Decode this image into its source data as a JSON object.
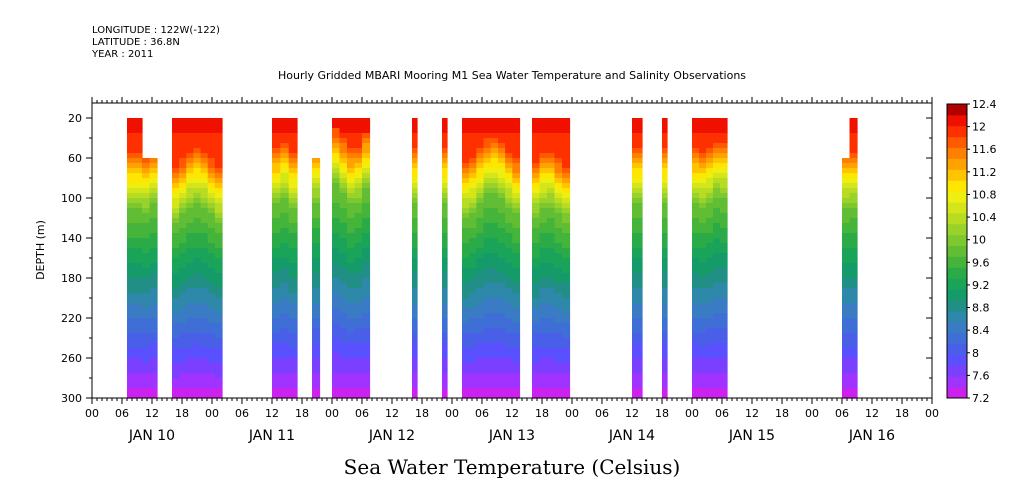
{
  "header": {
    "longitude": "LONGITUDE : 122W(-122)",
    "latitude": "LATITUDE : 36.8N",
    "year": "YEAR : 2011"
  },
  "chart_data": {
    "type": "heatmap",
    "title": "Hourly Gridded MBARI Mooring M1 Sea Water Temperature and Salinity Observations",
    "subtitle": "Sea Water Temperature (Celsius)",
    "ylabel": "DEPTH (m)",
    "xlabel": "",
    "x_unit": "hours since JAN 10 00",
    "xlim": [
      0,
      168
    ],
    "ylim": [
      300,
      0
    ],
    "y_ticks": [
      20,
      60,
      100,
      140,
      180,
      220,
      260,
      300
    ],
    "x_hour_ticks": [
      "00",
      "06",
      "12",
      "18",
      "00",
      "06",
      "12",
      "18",
      "00",
      "06",
      "12",
      "18",
      "00",
      "06",
      "12",
      "18",
      "00",
      "06",
      "12",
      "18",
      "00",
      "06",
      "12",
      "18",
      "00",
      "06",
      "12",
      "18",
      "00"
    ],
    "day_labels": [
      "JAN 10",
      "JAN 11",
      "JAN 12",
      "JAN 13",
      "JAN 14",
      "JAN 15",
      "JAN 16"
    ],
    "colorbar": {
      "levels": [
        7.2,
        7.4,
        7.6,
        7.8,
        8.0,
        8.2,
        8.4,
        8.6,
        8.8,
        9.0,
        9.2,
        9.4,
        9.6,
        9.8,
        10.0,
        10.2,
        10.4,
        10.6,
        10.8,
        11.0,
        11.2,
        11.4,
        11.6,
        11.8,
        12.0,
        12.2,
        12.4
      ],
      "tick_labels": [
        "7.2",
        "7.6",
        "8",
        "8.4",
        "8.8",
        "9.2",
        "9.6",
        "10",
        "10.4",
        "10.8",
        "11.2",
        "11.6",
        "12",
        "12.4"
      ],
      "colors": [
        "#cc22ee",
        "#a033ff",
        "#7a3fff",
        "#5a50ff",
        "#4a5fe8",
        "#3f6ed6",
        "#3a7cc4",
        "#2e88aa",
        "#218f86",
        "#159a6a",
        "#1aa45a",
        "#2bab48",
        "#44b43a",
        "#60bd34",
        "#7cc82e",
        "#98d22a",
        "#b8dc22",
        "#d4e61a",
        "#eeee10",
        "#ffe600",
        "#ffc400",
        "#ffa200",
        "#ff8000",
        "#ff5a00",
        "#ff3000",
        "#f01000",
        "#b00000"
      ]
    },
    "segments": [
      {
        "start": 7,
        "end": 10,
        "top_depth": 20,
        "thermocline": 85,
        "amp": 4
      },
      {
        "start": 10,
        "end": 13,
        "top_depth": 60,
        "thermocline": 85,
        "amp": 4
      },
      {
        "start": 16,
        "end": 26,
        "top_depth": 20,
        "thermocline": 90,
        "amp": 10
      },
      {
        "start": 36,
        "end": 41,
        "top_depth": 20,
        "thermocline": 80,
        "amp": 6
      },
      {
        "start": 44,
        "end": 45.5,
        "top_depth": 60,
        "thermocline": 80,
        "amp": 2
      },
      {
        "start": 48,
        "end": 55.5,
        "top_depth": 20,
        "thermocline": 72,
        "amp": 10
      },
      {
        "start": 64,
        "end": 65,
        "top_depth": 20,
        "thermocline": 80,
        "amp": 0
      },
      {
        "start": 70,
        "end": 71,
        "top_depth": 20,
        "thermocline": 80,
        "amp": 0
      },
      {
        "start": 74,
        "end": 85.5,
        "top_depth": 20,
        "thermocline": 82,
        "amp": 12
      },
      {
        "start": 88,
        "end": 95.5,
        "top_depth": 20,
        "thermocline": 90,
        "amp": 8
      },
      {
        "start": 108,
        "end": 109,
        "top_depth": 20,
        "thermocline": 80,
        "amp": 0
      },
      {
        "start": 109,
        "end": 110,
        "top_depth": 20,
        "thermocline": 80,
        "amp": 0
      },
      {
        "start": 114,
        "end": 115,
        "top_depth": 20,
        "thermocline": 80,
        "amp": 0
      },
      {
        "start": 120,
        "end": 127,
        "top_depth": 20,
        "thermocline": 78,
        "amp": 6
      },
      {
        "start": 150,
        "end": 151.5,
        "top_depth": 60,
        "thermocline": 82,
        "amp": 2
      },
      {
        "start": 151.5,
        "end": 153,
        "top_depth": 20,
        "thermocline": 82,
        "amp": 2
      }
    ]
  }
}
